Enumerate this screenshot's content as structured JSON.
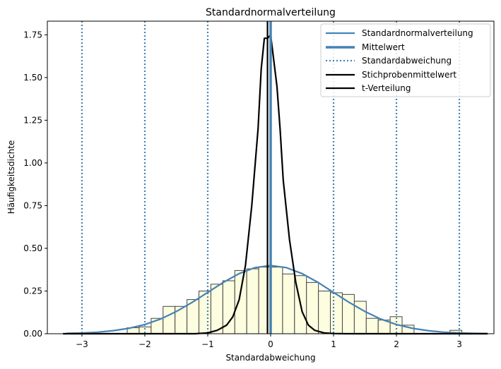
{
  "chart_data": {
    "type": "bar",
    "title": "Standardnormalverteilung",
    "xlabel": "Standardabweichung",
    "ylabel": "Häufigkeitsdichte",
    "xlim": [
      -3.55,
      3.55
    ],
    "ylim": [
      0,
      1.83
    ],
    "xticks": [
      -3,
      -2,
      -1,
      0,
      1,
      2,
      3
    ],
    "xtick_labels": [
      "−3",
      "−2",
      "−1",
      "0",
      "1",
      "2",
      "3"
    ],
    "yticks": [
      0,
      0.25,
      0.5,
      0.75,
      1.0,
      1.25,
      1.5,
      1.75
    ],
    "ytick_labels": [
      "0.00",
      "0.25",
      "0.50",
      "0.75",
      "1.00",
      "1.25",
      "1.50",
      "1.75"
    ],
    "grid": false,
    "legend_position": "top-right",
    "histogram": {
      "bin_width": 0.19,
      "bins": [
        {
          "x0": -3.23,
          "value": 0.0
        },
        {
          "x0": -3.04,
          "value": 0.0
        },
        {
          "x0": -2.85,
          "value": 0.0
        },
        {
          "x0": -2.66,
          "value": 0.0
        },
        {
          "x0": -2.47,
          "value": 0.0
        },
        {
          "x0": -2.28,
          "value": 0.035
        },
        {
          "x0": -2.09,
          "value": 0.04
        },
        {
          "x0": -1.9,
          "value": 0.09
        },
        {
          "x0": -1.71,
          "value": 0.16
        },
        {
          "x0": -1.52,
          "value": 0.16
        },
        {
          "x0": -1.33,
          "value": 0.2
        },
        {
          "x0": -1.14,
          "value": 0.25
        },
        {
          "x0": -0.95,
          "value": 0.29
        },
        {
          "x0": -0.76,
          "value": 0.31
        },
        {
          "x0": -0.57,
          "value": 0.37
        },
        {
          "x0": -0.38,
          "value": 0.38
        },
        {
          "x0": -0.19,
          "value": 0.39
        },
        {
          "x0": 0.0,
          "value": 0.39
        },
        {
          "x0": 0.19,
          "value": 0.35
        },
        {
          "x0": 0.38,
          "value": 0.34
        },
        {
          "x0": 0.57,
          "value": 0.3
        },
        {
          "x0": 0.76,
          "value": 0.25
        },
        {
          "x0": 0.95,
          "value": 0.24
        },
        {
          "x0": 1.14,
          "value": 0.23
        },
        {
          "x0": 1.33,
          "value": 0.19
        },
        {
          "x0": 1.52,
          "value": 0.09
        },
        {
          "x0": 1.71,
          "value": 0.08
        },
        {
          "x0": 1.9,
          "value": 0.1
        },
        {
          "x0": 2.09,
          "value": 0.05
        },
        {
          "x0": 2.28,
          "value": 0.0
        },
        {
          "x0": 2.47,
          "value": 0.0
        },
        {
          "x0": 2.66,
          "value": 0.0
        },
        {
          "x0": 2.85,
          "value": 0.02
        },
        {
          "x0": 3.04,
          "value": 0.0
        },
        {
          "x0": 3.23,
          "value": 0.0
        }
      ]
    },
    "series": [
      {
        "name": "Standardnormalverteilung",
        "kind": "line",
        "x": [
          -3.25,
          -3.0,
          -2.75,
          -2.5,
          -2.25,
          -2.0,
          -1.75,
          -1.5,
          -1.25,
          -1.0,
          -0.75,
          -0.5,
          -0.25,
          0.0,
          0.25,
          0.5,
          0.75,
          1.0,
          1.25,
          1.5,
          1.75,
          2.0,
          2.25,
          2.5,
          2.75,
          3.0,
          3.25,
          3.45
        ],
        "y": [
          0.002,
          0.004,
          0.009,
          0.018,
          0.032,
          0.054,
          0.086,
          0.13,
          0.183,
          0.242,
          0.301,
          0.352,
          0.387,
          0.399,
          0.387,
          0.352,
          0.301,
          0.242,
          0.183,
          0.13,
          0.086,
          0.054,
          0.032,
          0.018,
          0.009,
          0.004,
          0.002,
          0.001
        ]
      },
      {
        "name": "Mittelwert",
        "kind": "vline",
        "x": 0.0
      },
      {
        "name": "Standardabweichung",
        "kind": "vlines",
        "x": [
          -3,
          -2,
          -1,
          1,
          2,
          3
        ]
      },
      {
        "name": "Stichprobenmittelwert",
        "kind": "vline",
        "x": -0.05
      },
      {
        "name": "t-Verteilung",
        "kind": "line",
        "x": [
          -3.3,
          -1.2,
          -1.0,
          -0.85,
          -0.7,
          -0.6,
          -0.5,
          -0.4,
          -0.3,
          -0.2,
          -0.15,
          -0.1,
          -0.05,
          0.0,
          0.05,
          0.1,
          0.15,
          0.2,
          0.3,
          0.4,
          0.5,
          0.6,
          0.7,
          0.85,
          1.0,
          1.2,
          3.45
        ],
        "y": [
          0.0,
          0.0,
          0.005,
          0.02,
          0.05,
          0.1,
          0.2,
          0.4,
          0.75,
          1.2,
          1.55,
          1.73,
          1.73,
          1.75,
          1.6,
          1.45,
          1.2,
          0.9,
          0.55,
          0.3,
          0.13,
          0.05,
          0.02,
          0.005,
          0.001,
          0.0,
          0.0
        ]
      }
    ],
    "colors": {
      "normal": "#4682b4",
      "mean": "#4682b4",
      "std": "#4682b4",
      "sample_mean": "#000000",
      "t_dist": "#000000",
      "bar_fill": "#fdfde0",
      "bar_edge": "#444444"
    }
  }
}
